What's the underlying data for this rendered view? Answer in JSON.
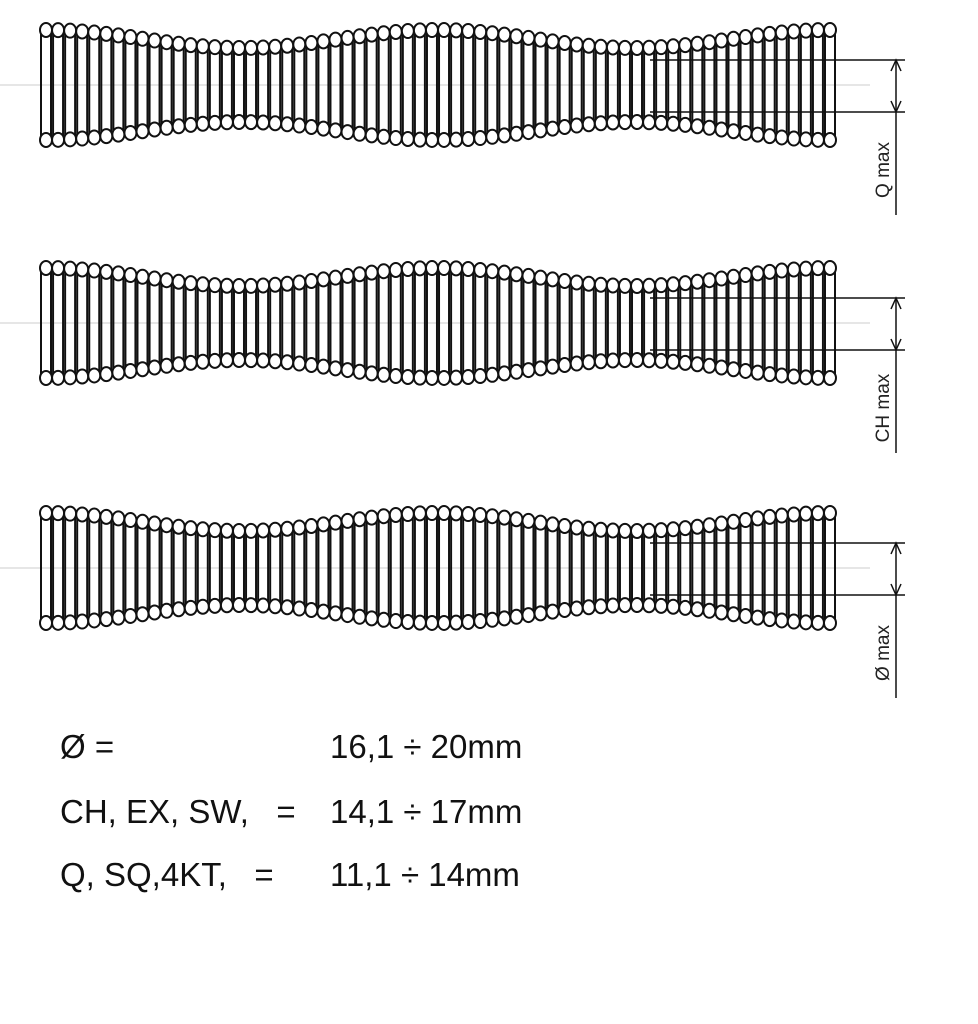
{
  "springs": [
    {
      "label": "Q max"
    },
    {
      "label": "CH max"
    },
    {
      "label": "Ø max"
    }
  ],
  "specs": {
    "rows": [
      {
        "label": "Ø =",
        "range": "16,1 ÷ 20mm"
      },
      {
        "label": "CH, EX, SW,   =",
        "range": "14,1 ÷ 17mm"
      },
      {
        "label": "Q, SQ,4KT,   =",
        "range": "11,1 ÷ 14mm"
      }
    ]
  }
}
